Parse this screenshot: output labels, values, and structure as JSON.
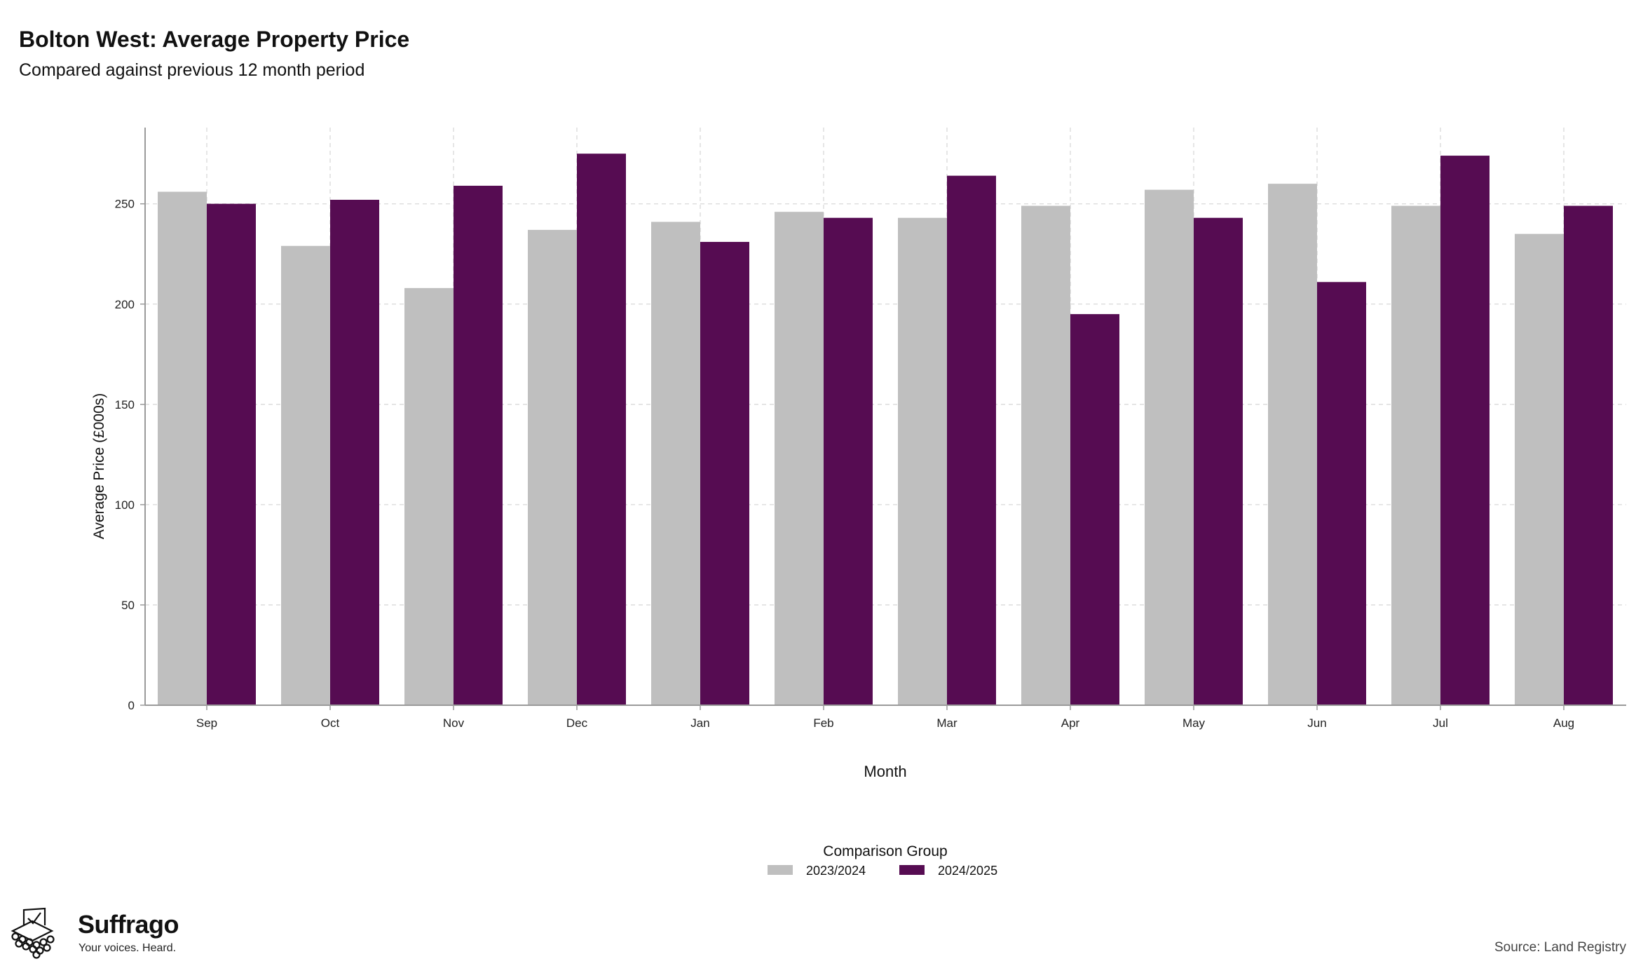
{
  "header": {
    "title": "Bolton West: Average Property Price",
    "subtitle": "Compared against previous 12 month period"
  },
  "chart_data": {
    "type": "bar",
    "xlabel": "Month",
    "ylabel": "Average Price (£000s)",
    "categories": [
      "Sep",
      "Oct",
      "Nov",
      "Dec",
      "Jan",
      "Feb",
      "Mar",
      "Apr",
      "May",
      "Jun",
      "Jul",
      "Aug"
    ],
    "series": [
      {
        "name": "2023/2024",
        "color": "#bfbfbf",
        "values": [
          256,
          229,
          208,
          237,
          241,
          246,
          243,
          249,
          257,
          260,
          249,
          235
        ]
      },
      {
        "name": "2024/2025",
        "color": "#560c52",
        "values": [
          250,
          252,
          259,
          275,
          231,
          243,
          264,
          195,
          243,
          211,
          274,
          249
        ]
      }
    ],
    "ylim": [
      0,
      288
    ],
    "yticks": [
      0,
      50,
      100,
      150,
      200,
      250
    ],
    "grid": true,
    "legend": {
      "title": "Comparison Group",
      "position": "bottom"
    }
  },
  "footer": {
    "brand_name": "Suffrago",
    "brand_tagline": "Your voices. Heard.",
    "source": "Source: Land Registry"
  }
}
